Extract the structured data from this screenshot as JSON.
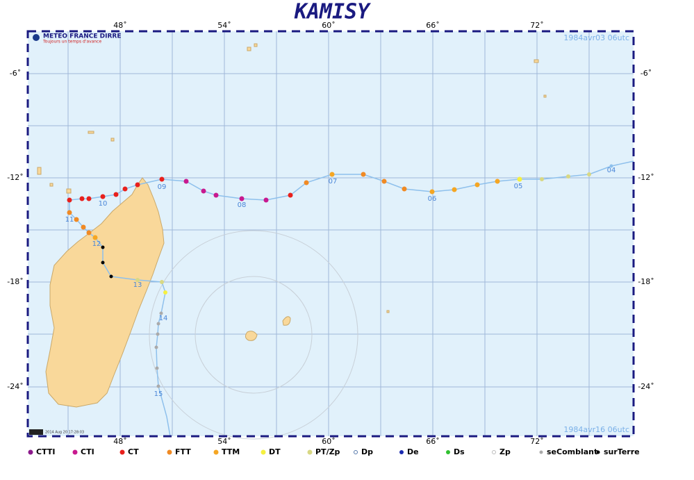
{
  "title": "KAMISY",
  "logo": "METEO FRANCE DIRRE",
  "tagline": "Toujours un temps d'avance",
  "start_date": "1984avr03  06utc",
  "end_date": "1984avr16  06utc",
  "footer": "2014 Aug 20 17:28:03",
  "lon_labels": [
    "48˚",
    "54˚",
    "60˚",
    "66˚",
    "72˚"
  ],
  "lat_labels": [
    "-6˚",
    "-12˚",
    "-18˚",
    "-24˚"
  ],
  "day_labels": [
    "04",
    "05",
    "06",
    "07",
    "08",
    "09",
    "10",
    "11",
    "12",
    "13",
    "14",
    "15"
  ],
  "legend": [
    "CTTI",
    "CTI",
    "CT",
    "FTT",
    "TTM",
    "DT",
    "PT/Zp",
    "Dp",
    "De",
    "Ds",
    "Zp",
    "seComblant",
    "surTerre"
  ]
}
